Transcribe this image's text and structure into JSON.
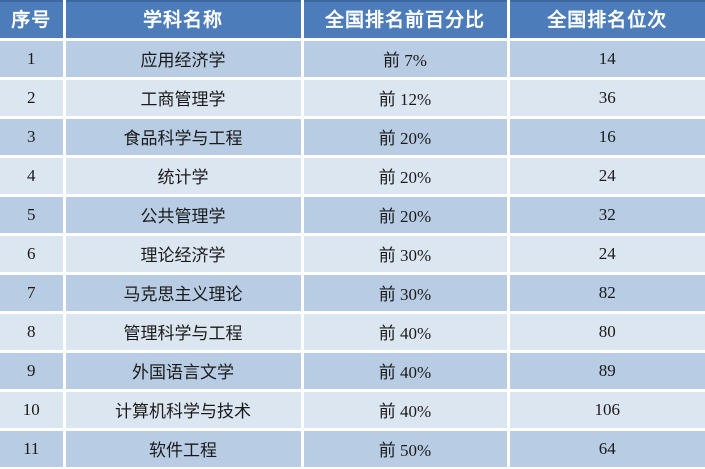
{
  "colors": {
    "header_bg": "#4d7cba",
    "header_top": "#3a689f",
    "row_odd_bg": "#b8cce4",
    "row_even_bg": "#dce6f1",
    "header_text": "#ffffff",
    "body_text": "#1a1a1a",
    "divider": "#ffffff"
  },
  "table": {
    "columns": [
      {
        "key": "index",
        "label": "序号"
      },
      {
        "key": "name",
        "label": "学科名称"
      },
      {
        "key": "percent",
        "label": "全国排名前百分比"
      },
      {
        "key": "rank",
        "label": "全国排名位次"
      }
    ],
    "rows": [
      {
        "index": "1",
        "name": "应用经济学",
        "percent": "前 7%",
        "rank": "14"
      },
      {
        "index": "2",
        "name": "工商管理学",
        "percent": "前 12%",
        "rank": "36"
      },
      {
        "index": "3",
        "name": "食品科学与工程",
        "percent": "前 20%",
        "rank": "16"
      },
      {
        "index": "4",
        "name": "统计学",
        "percent": "前 20%",
        "rank": "24"
      },
      {
        "index": "5",
        "name": "公共管理学",
        "percent": "前 20%",
        "rank": "32"
      },
      {
        "index": "6",
        "name": "理论经济学",
        "percent": "前 30%",
        "rank": "24"
      },
      {
        "index": "7",
        "name": "马克思主义理论",
        "percent": "前 30%",
        "rank": "82"
      },
      {
        "index": "8",
        "name": "管理科学与工程",
        "percent": "前 40%",
        "rank": "80"
      },
      {
        "index": "9",
        "name": "外国语言文学",
        "percent": "前 40%",
        "rank": "89"
      },
      {
        "index": "10",
        "name": "计算机科学与技术",
        "percent": "前 40%",
        "rank": "106"
      },
      {
        "index": "11",
        "name": "软件工程",
        "percent": "前 50%",
        "rank": "64"
      }
    ]
  }
}
